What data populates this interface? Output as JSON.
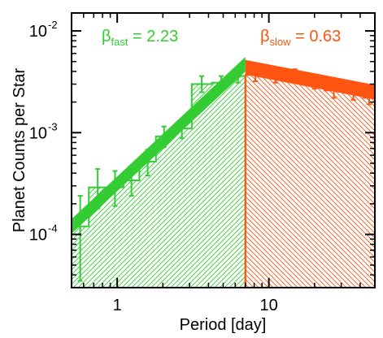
{
  "chart_data": {
    "type": "bar",
    "xlabel": "Period [day]",
    "ylabel": "Planet Counts per Star",
    "xscale": "log",
    "yscale": "log",
    "xlim": [
      0.5,
      50
    ],
    "ylim": [
      3e-05,
      0.015
    ],
    "x_ticks": [
      {
        "value": 1,
        "label": "1"
      },
      {
        "value": 10,
        "label": "10"
      }
    ],
    "y_ticks": [
      {
        "value": 0.0001,
        "base": "10",
        "exp": "-4"
      },
      {
        "value": 0.001,
        "base": "10",
        "exp": "-3"
      },
      {
        "value": 0.01,
        "base": "10",
        "exp": "-2"
      }
    ],
    "break_period": 7.0,
    "annotations": [
      {
        "id": "fast",
        "symbol": "β",
        "subscript": "fast",
        "value_text": " = 2.23",
        "color": "#33cc33"
      },
      {
        "id": "slow",
        "symbol": "β",
        "subscript": "slow",
        "value_text": " = 0.63",
        "color": "#ff5511"
      }
    ],
    "series": [
      {
        "color": "#33cc33",
        "bins": [
          {
            "x0": 0.5,
            "x1": 0.65,
            "y": 0.00012,
            "ylo": 3.5e-05,
            "yhi": 0.00024
          },
          {
            "x0": 0.65,
            "x1": 0.85,
            "y": 0.00029,
            "ylo": 0.00018,
            "yhi": 0.00044
          },
          {
            "x0": 0.85,
            "x1": 1.1,
            "y": 0.00029,
            "ylo": 0.00019,
            "yhi": 0.00042
          },
          {
            "x0": 1.1,
            "x1": 1.4,
            "y": 0.00034,
            "ylo": 0.00024,
            "yhi": 0.00047
          },
          {
            "x0": 1.4,
            "x1": 1.8,
            "y": 0.00052,
            "ylo": 0.00038,
            "yhi": 0.00068
          },
          {
            "x0": 1.8,
            "x1": 2.3,
            "y": 0.00092,
            "ylo": 0.00072,
            "yhi": 0.00115
          },
          {
            "x0": 2.3,
            "x1": 3.1,
            "y": 0.0011,
            "ylo": 0.00088,
            "yhi": 0.00134
          },
          {
            "x0": 3.1,
            "x1": 4.2,
            "y": 0.003,
            "ylo": 0.0025,
            "yhi": 0.0036
          },
          {
            "x0": 4.2,
            "x1": 5.6,
            "y": 0.0031,
            "ylo": 0.0027,
            "yhi": 0.0036
          },
          {
            "x0": 5.6,
            "x1": 7.0,
            "y": 0.0036,
            "ylo": 0.0031,
            "yhi": 0.0042
          }
        ],
        "fit": {
          "x": [
            0.5,
            7.0
          ],
          "y": [
            0.00012,
            0.0047
          ]
        }
      },
      {
        "color": "#ff5511",
        "bins": [
          {
            "x0": 7.0,
            "x1": 9.5,
            "y": 0.0037,
            "ylo": 0.0032,
            "yhi": 0.0042
          },
          {
            "x0": 9.5,
            "x1": 12.8,
            "y": 0.0035,
            "ylo": 0.0031,
            "yhi": 0.0039
          },
          {
            "x0": 12.8,
            "x1": 17.2,
            "y": 0.0037,
            "ylo": 0.0033,
            "yhi": 0.0042
          },
          {
            "x0": 17.2,
            "x1": 23.2,
            "y": 0.0031,
            "ylo": 0.0027,
            "yhi": 0.0035
          },
          {
            "x0": 23.2,
            "x1": 31.0,
            "y": 0.0026,
            "ylo": 0.0022,
            "yhi": 0.003
          },
          {
            "x0": 31.0,
            "x1": 42.0,
            "y": 0.0025,
            "ylo": 0.0021,
            "yhi": 0.0029
          },
          {
            "x0": 42.0,
            "x1": 50.0,
            "y": 0.0022,
            "ylo": 0.0019,
            "yhi": 0.0026
          }
        ],
        "fit": {
          "x": [
            7.0,
            50.0
          ],
          "y": [
            0.0044,
            0.0025
          ]
        }
      }
    ]
  }
}
